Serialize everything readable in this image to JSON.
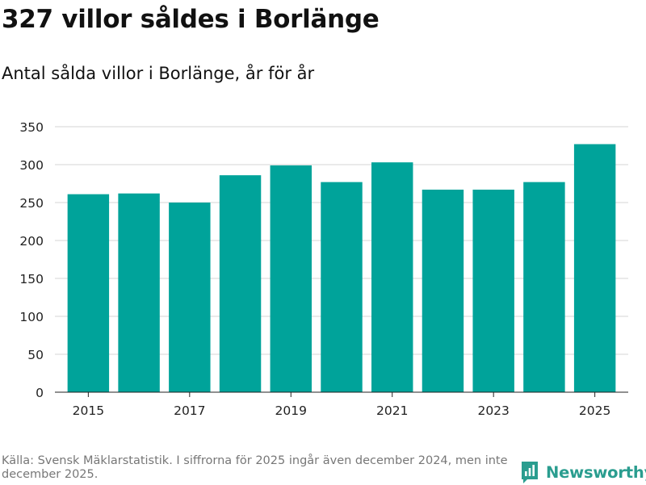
{
  "title": "327 villor såldes i Borlänge",
  "subtitle": "Antal sålda villor i Borlänge, år för år",
  "source": "Källa: Svensk Mäklarstatistik. I siffrorna för 2025 ingår även december 2024, men inte december 2025.",
  "brand": {
    "name": "Newsworthy",
    "color": "#2a9d8f"
  },
  "chart_data": {
    "type": "bar",
    "categories": [
      "2015",
      "2016",
      "2017",
      "2018",
      "2019",
      "2020",
      "2021",
      "2022",
      "2023",
      "2024",
      "2025"
    ],
    "values": [
      261,
      262,
      250,
      286,
      299,
      277,
      303,
      267,
      267,
      277,
      327
    ],
    "x_tick_labels": [
      "2015",
      "2017",
      "2019",
      "2021",
      "2023",
      "2025"
    ],
    "y_ticks": [
      0,
      50,
      100,
      150,
      200,
      250,
      300,
      350
    ],
    "ylim": [
      0,
      350
    ],
    "grid": true,
    "bar_color": "#00a39a",
    "xlabel": "",
    "ylabel": ""
  }
}
